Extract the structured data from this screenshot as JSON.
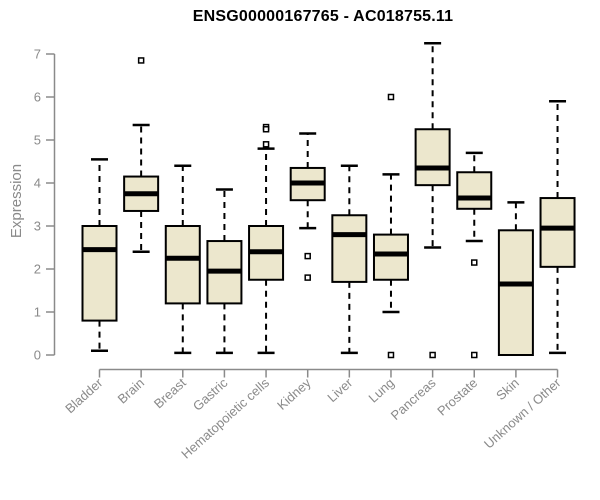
{
  "title": "ENSG00000167765 - AC018755.11",
  "chart_data": {
    "type": "boxplot",
    "title": "ENSG00000167765 - AC018755.11",
    "ylabel": "Expression",
    "xlabel": "",
    "ylim": [
      0,
      7
    ],
    "yticks": [
      0,
      1,
      2,
      3,
      4,
      5,
      6,
      7
    ],
    "grid": false,
    "legend": "none",
    "categories": [
      "Bladder",
      "Brain",
      "Breast",
      "Gastric",
      "Hematopoietic cells",
      "Kidney",
      "Liver",
      "Lung",
      "Pancreas",
      "Prostate",
      "Skin",
      "Unknown / Other"
    ],
    "boxes": [
      {
        "label": "Bladder",
        "min": 0.1,
        "q1": 0.8,
        "median": 2.45,
        "q3": 3.0,
        "max": 4.55,
        "outliers": []
      },
      {
        "label": "Brain",
        "min": 2.4,
        "q1": 3.35,
        "median": 3.75,
        "q3": 4.15,
        "max": 5.35,
        "outliers": [
          6.85
        ]
      },
      {
        "label": "Breast",
        "min": 0.05,
        "q1": 1.2,
        "median": 2.25,
        "q3": 3.0,
        "max": 4.4,
        "outliers": []
      },
      {
        "label": "Gastric",
        "min": 0.05,
        "q1": 1.2,
        "median": 1.95,
        "q3": 2.65,
        "max": 3.85,
        "outliers": []
      },
      {
        "label": "Hematopoietic cells",
        "min": 0.05,
        "q1": 1.75,
        "median": 2.4,
        "q3": 3.0,
        "max": 4.8,
        "outliers": [
          5.3,
          5.25,
          4.9
        ]
      },
      {
        "label": "Kidney",
        "min": 2.95,
        "q1": 3.6,
        "median": 4.0,
        "q3": 4.35,
        "max": 5.15,
        "outliers": [
          2.3,
          1.8
        ]
      },
      {
        "label": "Liver",
        "min": 0.05,
        "q1": 1.7,
        "median": 2.8,
        "q3": 3.25,
        "max": 4.4,
        "outliers": []
      },
      {
        "label": "Lung",
        "min": 1.0,
        "q1": 1.75,
        "median": 2.35,
        "q3": 2.8,
        "max": 4.2,
        "outliers": [
          6.0,
          0.0
        ]
      },
      {
        "label": "Pancreas",
        "min": 2.5,
        "q1": 3.95,
        "median": 4.35,
        "q3": 5.25,
        "max": 7.25,
        "outliers": [
          0.0
        ]
      },
      {
        "label": "Prostate",
        "min": 2.65,
        "q1": 3.4,
        "median": 3.65,
        "q3": 4.25,
        "max": 4.7,
        "outliers": [
          2.15,
          0.0
        ]
      },
      {
        "label": "Skin",
        "min": 0.0,
        "q1": 0.0,
        "median": 1.65,
        "q3": 2.9,
        "max": 3.55,
        "outliers": []
      },
      {
        "label": "Unknown / Other",
        "min": 0.05,
        "q1": 2.05,
        "median": 2.95,
        "q3": 3.65,
        "max": 5.9,
        "outliers": []
      }
    ]
  },
  "colors": {
    "box_fill": "#ece7cd",
    "box_stroke": "#000000",
    "median": "#000000",
    "whisker": "#000000",
    "axis": "#8a8a8a",
    "title_color": "#000000",
    "background": "#ffffff"
  }
}
